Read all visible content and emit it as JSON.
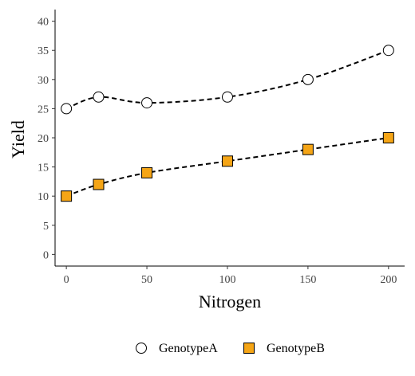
{
  "chart_data": {
    "type": "line",
    "xlabel": "Nitrogen",
    "ylabel": "Yield",
    "xlim": [
      -7,
      210
    ],
    "ylim": [
      -2,
      42
    ],
    "x_ticks": [
      0,
      50,
      100,
      150,
      200
    ],
    "y_ticks": [
      0,
      5,
      10,
      15,
      20,
      25,
      30,
      35,
      40
    ],
    "grid": false,
    "legend_position": "bottom",
    "x": [
      0,
      20,
      50,
      100,
      150,
      200
    ],
    "series": [
      {
        "name": "GenotypeA",
        "values": [
          25,
          27,
          26,
          27,
          30,
          35
        ],
        "marker": "circle",
        "fill": "#ffffff"
      },
      {
        "name": "GenotypeB",
        "values": [
          10,
          12,
          14,
          16,
          18,
          20
        ],
        "marker": "square",
        "fill": "#f5a516"
      }
    ]
  }
}
